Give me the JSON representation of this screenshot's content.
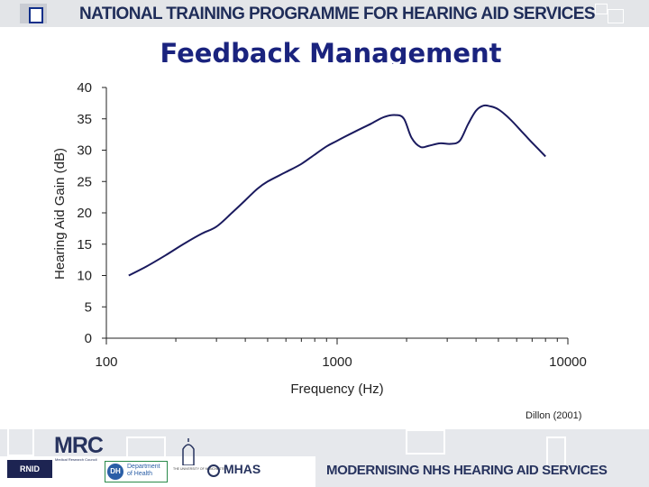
{
  "header": {
    "title": "NATIONAL TRAINING PROGRAMME FOR  HEARING AID SERVICES"
  },
  "slide": {
    "title": "Feedback Management",
    "citation": "Dillon (2001)"
  },
  "colors": {
    "line": "#1a1a5e",
    "title": "#1a237e",
    "banner": "#e3e5e8",
    "navy": "#1f2d59"
  },
  "chart_data": {
    "type": "line",
    "title": "",
    "xlabel": "Frequency (Hz)",
    "ylabel": "Hearing Aid Gain (dB)",
    "xscale": "log",
    "xlim": [
      100,
      10000
    ],
    "ylim": [
      0,
      40
    ],
    "xticks": [
      100,
      1000,
      10000
    ],
    "xtick_labels": [
      "100",
      "1000",
      "10000"
    ],
    "yticks": [
      0,
      5,
      10,
      15,
      20,
      25,
      30,
      35,
      40
    ],
    "ytick_labels": [
      "0",
      "5",
      "10",
      "15",
      "20",
      "25",
      "30",
      "35",
      "40"
    ],
    "grid": false,
    "legend": "none",
    "series": [
      {
        "x": [
          125,
          150,
          180,
          220,
          260,
          300,
          350,
          400,
          450,
          500,
          600,
          700,
          800,
          900,
          1000,
          1200,
          1400,
          1600,
          1800,
          1950,
          2100,
          2300,
          2500,
          2800,
          3100,
          3400,
          3700,
          4000,
          4300,
          4600,
          5000,
          5600,
          6300,
          7000,
          8000
        ],
        "y": [
          10,
          11.5,
          13.2,
          15.2,
          16.7,
          17.8,
          20,
          22,
          23.8,
          25,
          26.5,
          27.8,
          29.3,
          30.6,
          31.5,
          33,
          34.2,
          35.3,
          35.6,
          35,
          32,
          30.5,
          30.7,
          31.1,
          31,
          31.5,
          34.2,
          36.3,
          37.1,
          37,
          36.5,
          35,
          33,
          31.2,
          29
        ]
      }
    ]
  },
  "footer": {
    "mrc": "MRC",
    "mrc_sub": "Medical Research Council",
    "rnid": "RNID",
    "dh_abbrev": "DH",
    "dh_name": "Department\nof Health",
    "manchester": "THE UNIVERSITY OF MANCHESTER",
    "mhas": "MHAS",
    "title": "MODERNISING NHS HEARING AID SERVICES"
  }
}
